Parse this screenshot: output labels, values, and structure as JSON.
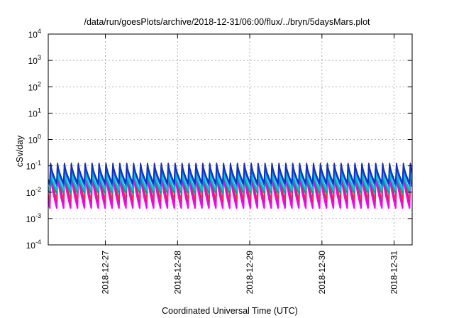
{
  "chart_data": {
    "type": "line",
    "title": "/data/run/goesPlots/archive/2018-12-31/06:00/flux/../bryn/5daysMars.plot",
    "xlabel": "Coordinated Universal Time (UTC)",
    "ylabel": "cSv/day",
    "yscale": "log",
    "ylim": [
      0.0001,
      10000
    ],
    "xlim": [
      "2018-12-26T05:00",
      "2018-12-31T06:00"
    ],
    "yticks": [
      {
        "value": 0.0001,
        "base": "10",
        "exp": "-4"
      },
      {
        "value": 0.001,
        "base": "10",
        "exp": "-3"
      },
      {
        "value": 0.01,
        "base": "10",
        "exp": "-2"
      },
      {
        "value": 0.1,
        "base": "10",
        "exp": "-1"
      },
      {
        "value": 1,
        "base": "10",
        "exp": "0"
      },
      {
        "value": 10,
        "base": "10",
        "exp": "1"
      },
      {
        "value": 100,
        "base": "10",
        "exp": "2"
      },
      {
        "value": 1000,
        "base": "10",
        "exp": "3"
      },
      {
        "value": 10000,
        "base": "10",
        "exp": "4"
      }
    ],
    "xticks": [
      "2018-12-27",
      "2018-12-28",
      "2018-12-29",
      "2018-12-30",
      "2018-12-31"
    ],
    "grid": true,
    "pattern": {
      "period_hours": 2.3,
      "peak_hour_offset": 0.8
    },
    "series": [
      {
        "color": "#ff00ff",
        "peak": 0.05,
        "trough": 0.0025,
        "width": 2.2
      },
      {
        "color": "#e010e0",
        "peak": 0.06,
        "trough": 0.0035,
        "width": 2.0
      },
      {
        "color": "#c02080",
        "peak": 0.07,
        "trough": 0.0045,
        "width": 1.6
      },
      {
        "color": "#ff3030",
        "peak": 0.13,
        "trough": 0.005,
        "width": 1.2
      },
      {
        "color": "#00a0a0",
        "peak": 0.05,
        "trough": 0.009,
        "width": 1.8
      },
      {
        "color": "#00c8c8",
        "peak": 0.06,
        "trough": 0.012,
        "width": 2.2
      },
      {
        "color": "#1060ff",
        "peak": 0.1,
        "trough": 0.018,
        "width": 2.0
      },
      {
        "color": "#1030c0",
        "peak": 0.12,
        "trough": 0.022,
        "width": 2.0
      }
    ]
  }
}
